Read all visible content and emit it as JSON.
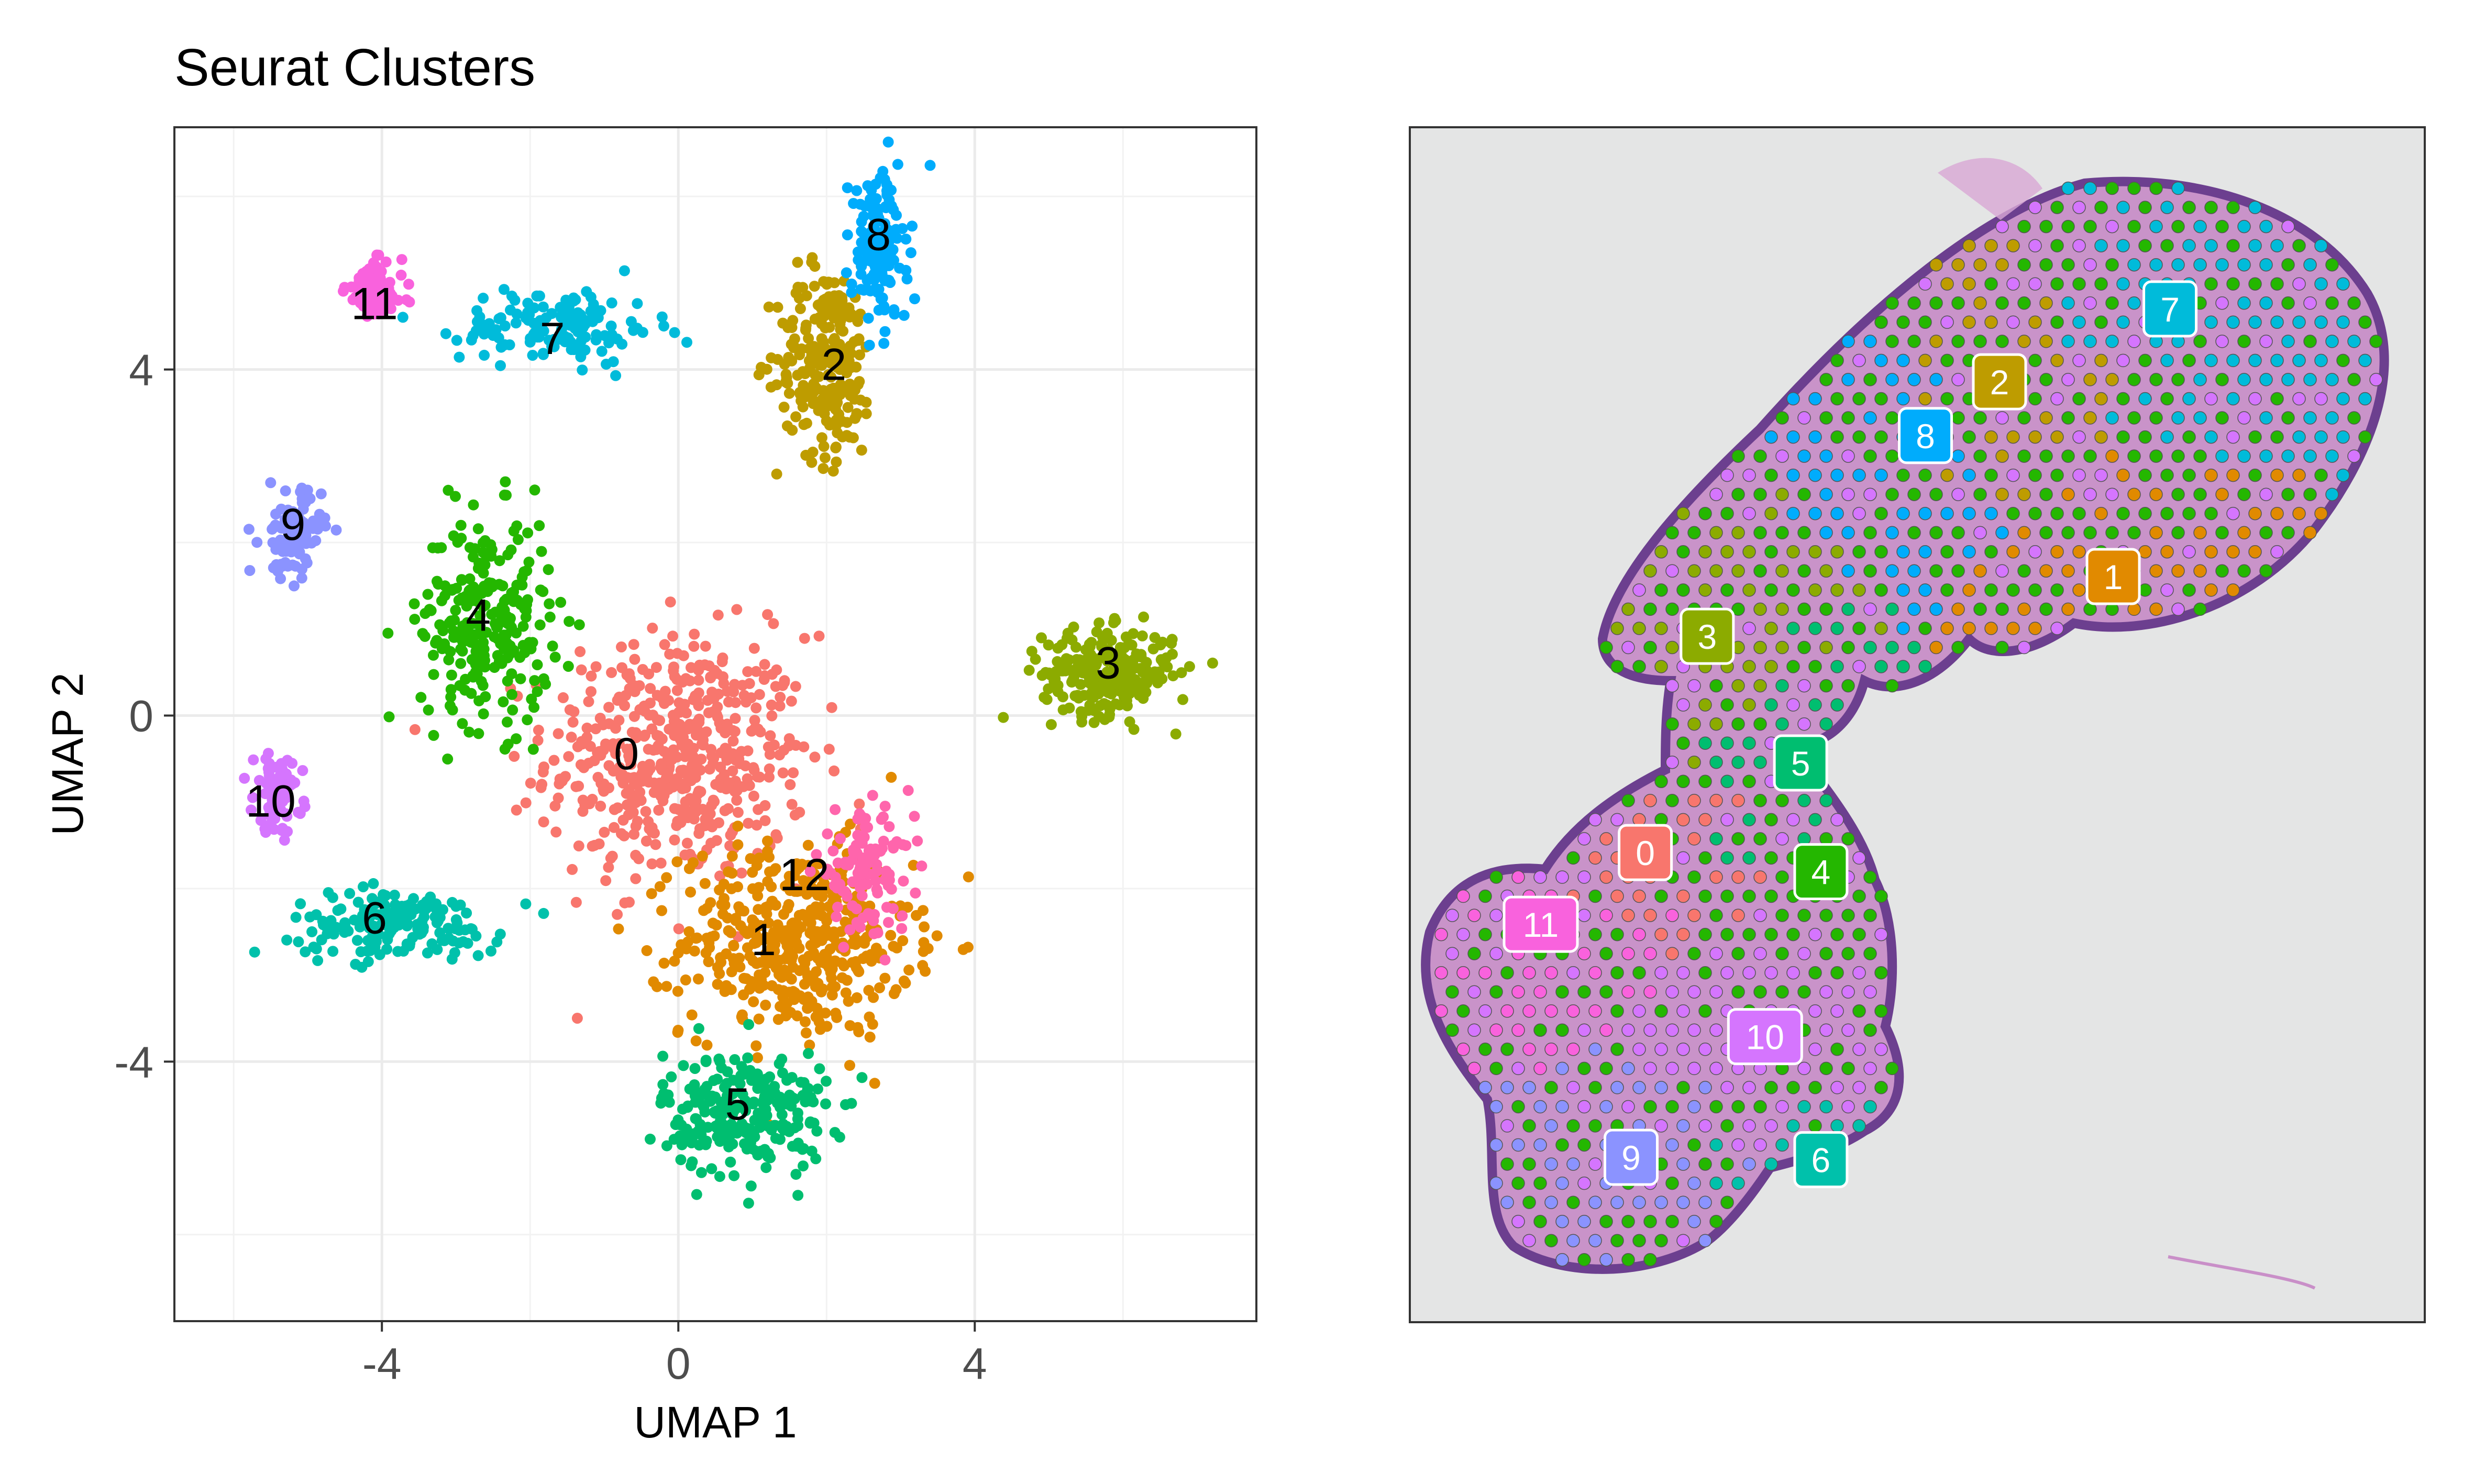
{
  "title": "Seurat Clusters",
  "chart_data": [
    {
      "type": "scatter",
      "title": "Seurat Clusters",
      "xlabel": "UMAP 1",
      "ylabel": "UMAP 2",
      "xlim": [
        -6.8,
        7.8
      ],
      "ylim": [
        -7.0,
        6.8
      ],
      "xticks": [
        -4,
        0,
        4
      ],
      "xtick_labels": [
        "-4",
        "0",
        "4"
      ],
      "yticks": [
        -4,
        0,
        4
      ],
      "ytick_labels": [
        "-4",
        "0",
        "4"
      ],
      "grid": true,
      "legend": "none",
      "series": [
        {
          "name": "0",
          "color": "#F8766D",
          "cx": 0.0,
          "cy": -0.5,
          "sx": 1.6,
          "sy": 1.3,
          "n": 520,
          "label_pos": [
            -0.7,
            -0.45
          ]
        },
        {
          "name": "1",
          "color": "#E18A00",
          "cx": 1.6,
          "cy": -2.6,
          "sx": 1.4,
          "sy": 1.0,
          "n": 460,
          "label_pos": [
            1.15,
            -2.6
          ]
        },
        {
          "name": "2",
          "color": "#BE9C00",
          "cx": 2.0,
          "cy": 4.1,
          "sx": 0.6,
          "sy": 1.0,
          "n": 240,
          "label_pos": [
            2.1,
            4.05
          ]
        },
        {
          "name": "3",
          "color": "#8CAB00",
          "cx": 5.8,
          "cy": 0.5,
          "sx": 0.8,
          "sy": 0.45,
          "n": 260,
          "label_pos": [
            5.8,
            0.6
          ]
        },
        {
          "name": "4",
          "color": "#24B700",
          "cx": -2.6,
          "cy": 1.1,
          "sx": 0.8,
          "sy": 1.1,
          "n": 260,
          "label_pos": [
            -2.7,
            1.15
          ]
        },
        {
          "name": "5",
          "color": "#00BE70",
          "cx": 0.9,
          "cy": -4.6,
          "sx": 1.0,
          "sy": 0.65,
          "n": 260,
          "label_pos": [
            0.8,
            -4.5
          ]
        },
        {
          "name": "6",
          "color": "#00C1AB",
          "cx": -3.8,
          "cy": -2.4,
          "sx": 1.3,
          "sy": 0.35,
          "n": 170,
          "label_pos": [
            -4.1,
            -2.35
          ]
        },
        {
          "name": "7",
          "color": "#00BBDA",
          "cx": -1.6,
          "cy": 4.5,
          "sx": 1.2,
          "sy": 0.4,
          "n": 140,
          "label_pos": [
            -1.7,
            4.35
          ]
        },
        {
          "name": "8",
          "color": "#00ACFC",
          "cx": 2.7,
          "cy": 5.4,
          "sx": 0.35,
          "sy": 0.8,
          "n": 150,
          "label_pos": [
            2.7,
            5.55
          ]
        },
        {
          "name": "9",
          "color": "#8B93FF",
          "cx": -5.2,
          "cy": 2.1,
          "sx": 0.35,
          "sy": 0.45,
          "n": 110,
          "label_pos": [
            -5.2,
            2.2
          ]
        },
        {
          "name": "10",
          "color": "#D575FE",
          "cx": -5.4,
          "cy": -0.9,
          "sx": 0.3,
          "sy": 0.4,
          "n": 80,
          "label_pos": [
            -5.5,
            -1.0
          ]
        },
        {
          "name": "11",
          "color": "#F962DD",
          "cx": -4.1,
          "cy": 4.9,
          "sx": 0.35,
          "sy": 0.3,
          "n": 110,
          "label_pos": [
            -4.1,
            4.75
          ]
        },
        {
          "name": "12",
          "color": "#FF65AC",
          "cx": 2.5,
          "cy": -1.8,
          "sx": 0.6,
          "sy": 0.6,
          "n": 110,
          "label_pos": [
            1.7,
            -1.85
          ]
        }
      ]
    },
    {
      "type": "scatter",
      "subtype": "spatial-tissue",
      "xlabel": "",
      "ylabel": "",
      "grid": false,
      "legend": "none",
      "labels": [
        {
          "name": "0",
          "color": "#F8766D",
          "u": 0.232,
          "v": 0.607
        },
        {
          "name": "1",
          "color": "#E18A00",
          "u": 0.693,
          "v": 0.376
        },
        {
          "name": "2",
          "color": "#BE9C00",
          "u": 0.581,
          "v": 0.213
        },
        {
          "name": "3",
          "color": "#8CAB00",
          "u": 0.293,
          "v": 0.426
        },
        {
          "name": "4",
          "color": "#24B700",
          "u": 0.405,
          "v": 0.623
        },
        {
          "name": "5",
          "color": "#00BE70",
          "u": 0.385,
          "v": 0.532
        },
        {
          "name": "6",
          "color": "#00C1AB",
          "u": 0.405,
          "v": 0.864
        },
        {
          "name": "7",
          "color": "#00BBDA",
          "u": 0.749,
          "v": 0.152
        },
        {
          "name": "8",
          "color": "#00ACFC",
          "u": 0.508,
          "v": 0.258
        },
        {
          "name": "9",
          "color": "#8B93FF",
          "u": 0.218,
          "v": 0.862
        },
        {
          "name": "10",
          "color": "#D575FE",
          "u": 0.35,
          "v": 0.761
        },
        {
          "name": "11",
          "color": "#F962DD",
          "u": 0.129,
          "v": 0.667
        }
      ]
    }
  ]
}
